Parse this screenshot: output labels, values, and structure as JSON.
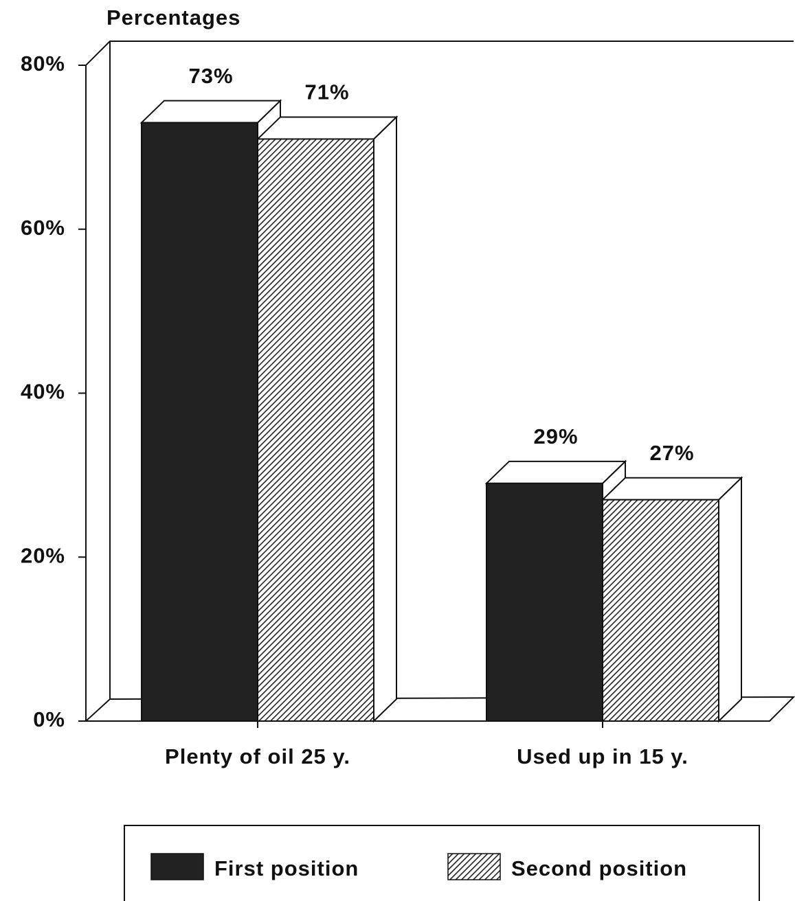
{
  "chart_data": {
    "type": "bar3d",
    "title": "Percentages",
    "categories": [
      "Plenty of oil 25 y.",
      "Used up in 15 y."
    ],
    "series": [
      {
        "name": "First position",
        "color": "#222222",
        "pattern": "solid",
        "values": [
          73,
          29
        ],
        "value_labels": [
          "73%",
          "29%"
        ]
      },
      {
        "name": "Second position",
        "color": "#222222",
        "pattern": "hatch",
        "values": [
          71,
          27
        ],
        "value_labels": [
          "71%",
          "27%"
        ]
      }
    ],
    "ylim": [
      0,
      80
    ],
    "yticks": [
      {
        "value": 0,
        "label": "0%"
      },
      {
        "value": 20,
        "label": "20%"
      },
      {
        "value": 40,
        "label": "40%"
      },
      {
        "value": 60,
        "label": "60%"
      },
      {
        "value": 80,
        "label": "80%"
      }
    ],
    "grid": false,
    "legend": "bottom"
  }
}
